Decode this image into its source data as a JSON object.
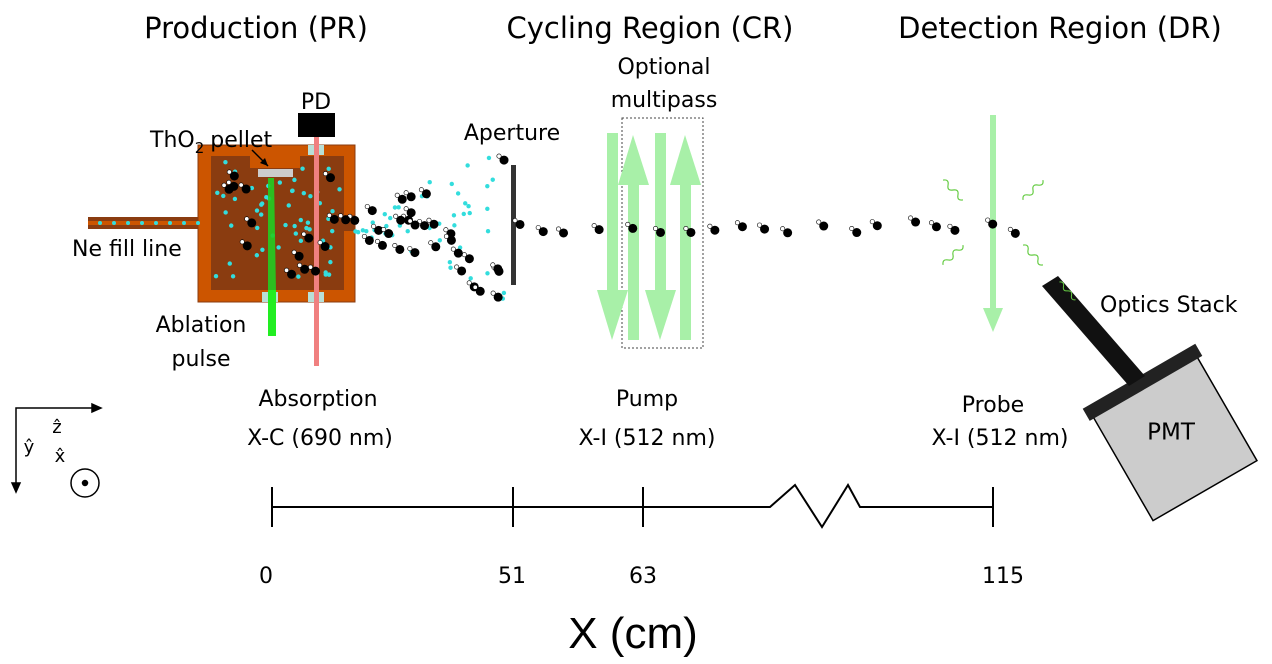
{
  "regions": {
    "production": "Production (PR)",
    "cycling": "Cycling Region (CR)",
    "detection": "Detection Region (DR)"
  },
  "labels": {
    "pellet": {
      "formula": "ThO",
      "subscript": "2",
      "rest": "pellet"
    },
    "photodiode": "PD",
    "aperture": "Aperture",
    "multipass": [
      "Optional",
      "multipass"
    ],
    "fill_line": "Ne fill line",
    "ablation": [
      "Ablation",
      "pulse"
    ],
    "optics_stack": "Optics Stack",
    "pmt": "PMT"
  },
  "lasers": [
    {
      "name": "Absorption",
      "transition": "X-C (690 nm)"
    },
    {
      "name": "Pump",
      "transition": "X-I (512 nm)"
    },
    {
      "name": "Probe",
      "transition": "X-I (512 nm)"
    }
  ],
  "axes": {
    "z": "ẑ",
    "y": "ŷ",
    "x": "x̂"
  },
  "scale": {
    "ticks": [
      "0",
      "51",
      "63",
      "115"
    ],
    "title": "X (cm)"
  }
}
